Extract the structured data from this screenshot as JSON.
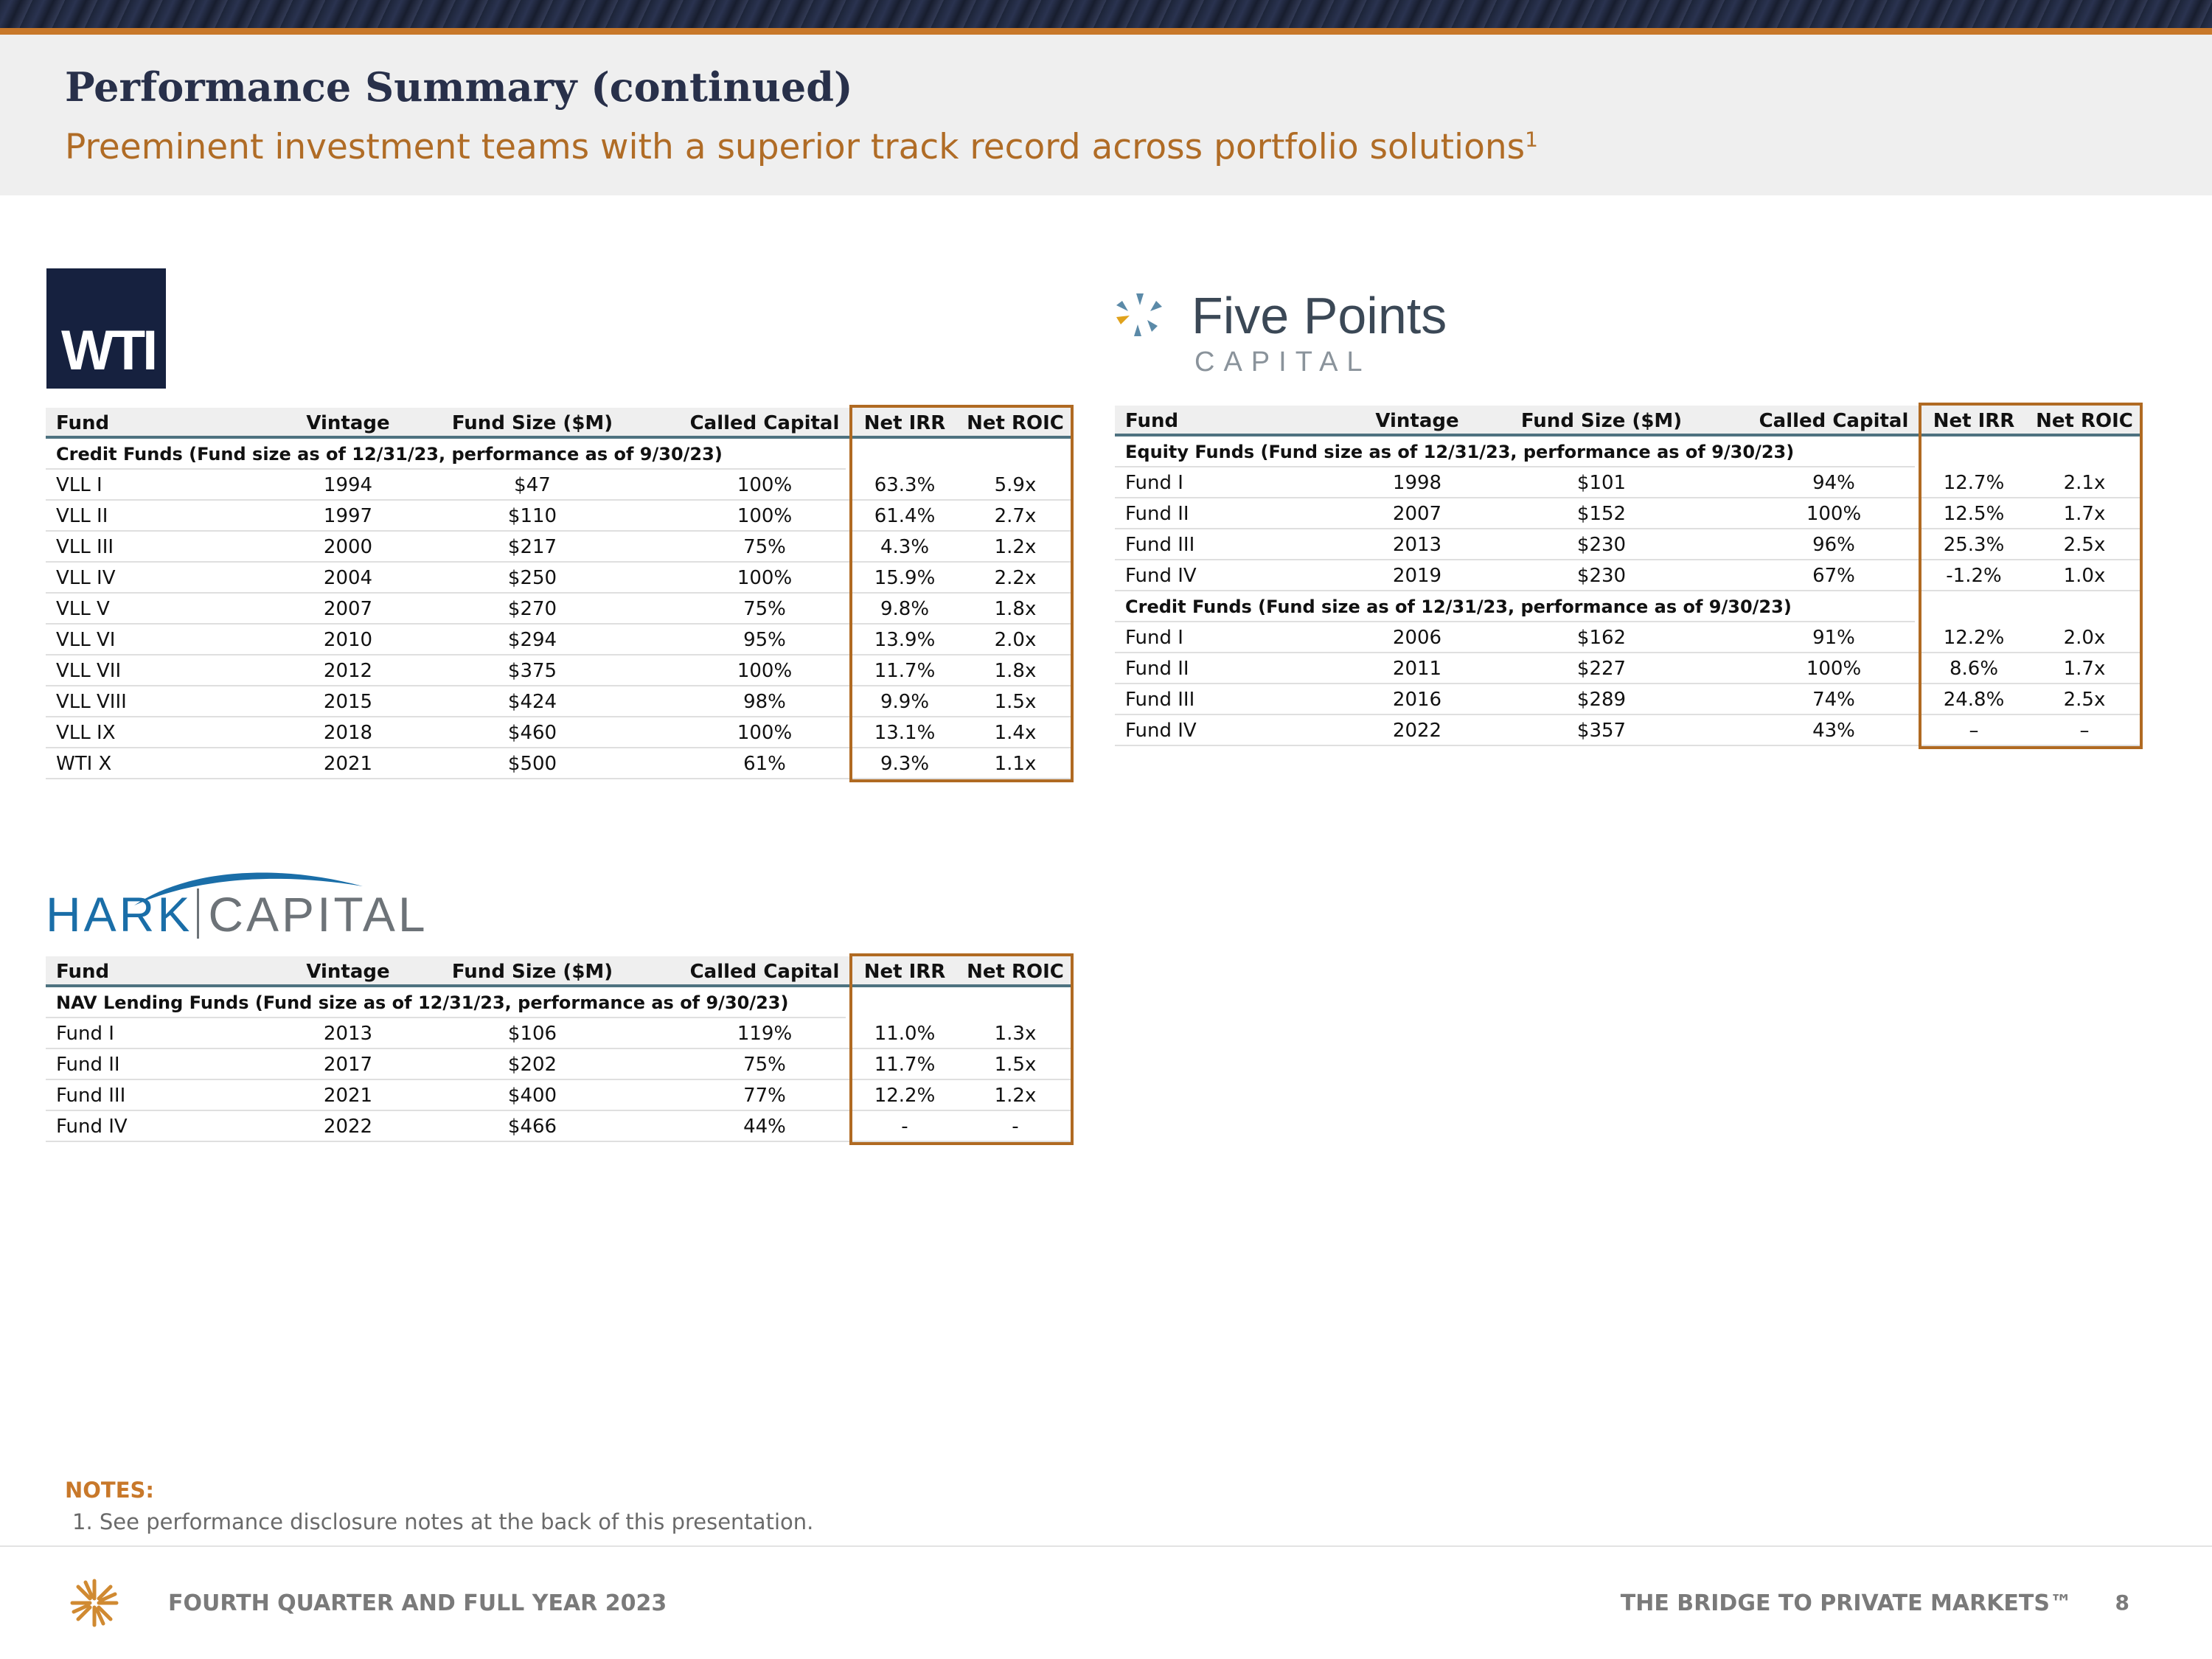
{
  "header": {
    "title": "Performance Summary (continued)",
    "subtitle": "Preeminent investment teams with a superior track record across portfolio solutions",
    "subtitle_footnote": "1",
    "accent_color": "#c8782a",
    "title_color": "#28304a"
  },
  "logos": {
    "wti": "WTI",
    "five_points_name": "Five Points",
    "five_points_sub": "CAPITAL",
    "hark_left": "HARK",
    "hark_right": "CAPITAL"
  },
  "columns": {
    "fund": "Fund",
    "vintage": "Vintage",
    "size": "Fund Size ($M)",
    "called": "Called Capital",
    "irr": "Net IRR",
    "roic": "Net ROIC"
  },
  "wti_table": {
    "sections": [
      {
        "label": "Credit Funds (Fund size as of 12/31/23, performance as of 9/30/23)",
        "rows": [
          {
            "fund": "VLL I",
            "vintage": "1994",
            "size": "$47",
            "called": "100%",
            "irr": "63.3%",
            "roic": "5.9x"
          },
          {
            "fund": "VLL II",
            "vintage": "1997",
            "size": "$110",
            "called": "100%",
            "irr": "61.4%",
            "roic": "2.7x"
          },
          {
            "fund": "VLL III",
            "vintage": "2000",
            "size": "$217",
            "called": "75%",
            "irr": "4.3%",
            "roic": "1.2x"
          },
          {
            "fund": "VLL IV",
            "vintage": "2004",
            "size": "$250",
            "called": "100%",
            "irr": "15.9%",
            "roic": "2.2x"
          },
          {
            "fund": "VLL V",
            "vintage": "2007",
            "size": "$270",
            "called": "75%",
            "irr": "9.8%",
            "roic": "1.8x"
          },
          {
            "fund": "VLL VI",
            "vintage": "2010",
            "size": "$294",
            "called": "95%",
            "irr": "13.9%",
            "roic": "2.0x"
          },
          {
            "fund": "VLL VII",
            "vintage": "2012",
            "size": "$375",
            "called": "100%",
            "irr": "11.7%",
            "roic": "1.8x"
          },
          {
            "fund": "VLL VIII",
            "vintage": "2015",
            "size": "$424",
            "called": "98%",
            "irr": "9.9%",
            "roic": "1.5x"
          },
          {
            "fund": "VLL IX",
            "vintage": "2018",
            "size": "$460",
            "called": "100%",
            "irr": "13.1%",
            "roic": "1.4x"
          },
          {
            "fund": "WTI X",
            "vintage": "2021",
            "size": "$500",
            "called": "61%",
            "irr": "9.3%",
            "roic": "1.1x"
          }
        ]
      }
    ]
  },
  "five_points_table": {
    "sections": [
      {
        "label": "Equity Funds (Fund size as of 12/31/23, performance as of 9/30/23)",
        "rows": [
          {
            "fund": "Fund I",
            "vintage": "1998",
            "size": "$101",
            "called": "94%",
            "irr": "12.7%",
            "roic": "2.1x"
          },
          {
            "fund": "Fund II",
            "vintage": "2007",
            "size": "$152",
            "called": "100%",
            "irr": "12.5%",
            "roic": "1.7x"
          },
          {
            "fund": "Fund III",
            "vintage": "2013",
            "size": "$230",
            "called": "96%",
            "irr": "25.3%",
            "roic": "2.5x"
          },
          {
            "fund": "Fund IV",
            "vintage": "2019",
            "size": "$230",
            "called": "67%",
            "irr": "-1.2%",
            "roic": "1.0x"
          }
        ]
      },
      {
        "label": "Credit Funds (Fund size as of 12/31/23, performance as of 9/30/23)",
        "rows": [
          {
            "fund": "Fund I",
            "vintage": "2006",
            "size": "$162",
            "called": "91%",
            "irr": "12.2%",
            "roic": "2.0x"
          },
          {
            "fund": "Fund II",
            "vintage": "2011",
            "size": "$227",
            "called": "100%",
            "irr": "8.6%",
            "roic": "1.7x"
          },
          {
            "fund": "Fund III",
            "vintage": "2016",
            "size": "$289",
            "called": "74%",
            "irr": "24.8%",
            "roic": "2.5x"
          },
          {
            "fund": "Fund IV",
            "vintage": "2022",
            "size": "$357",
            "called": "43%",
            "irr": "–",
            "roic": "–"
          }
        ]
      }
    ]
  },
  "hark_table": {
    "sections": [
      {
        "label": "NAV Lending Funds (Fund size as of 12/31/23, performance as of 9/30/23)",
        "rows": [
          {
            "fund": "Fund I",
            "vintage": "2013",
            "size": "$106",
            "called": "119%",
            "irr": "11.0%",
            "roic": "1.3x"
          },
          {
            "fund": "Fund II",
            "vintage": "2017",
            "size": "$202",
            "called": "75%",
            "irr": "11.7%",
            "roic": "1.5x"
          },
          {
            "fund": "Fund III",
            "vintage": "2021",
            "size": "$400",
            "called": "77%",
            "irr": "12.2%",
            "roic": "1.2x"
          },
          {
            "fund": "Fund IV",
            "vintage": "2022",
            "size": "$466",
            "called": "44%",
            "irr": "-",
            "roic": "-"
          }
        ]
      }
    ]
  },
  "notes": {
    "title": "NOTES:",
    "items": [
      "1. See performance disclosure notes at the back of this presentation."
    ]
  },
  "footer": {
    "left": "FOURTH QUARTER AND FULL YEAR 2023",
    "right": "THE BRIDGE TO PRIVATE MARKETS™",
    "page": "8"
  }
}
